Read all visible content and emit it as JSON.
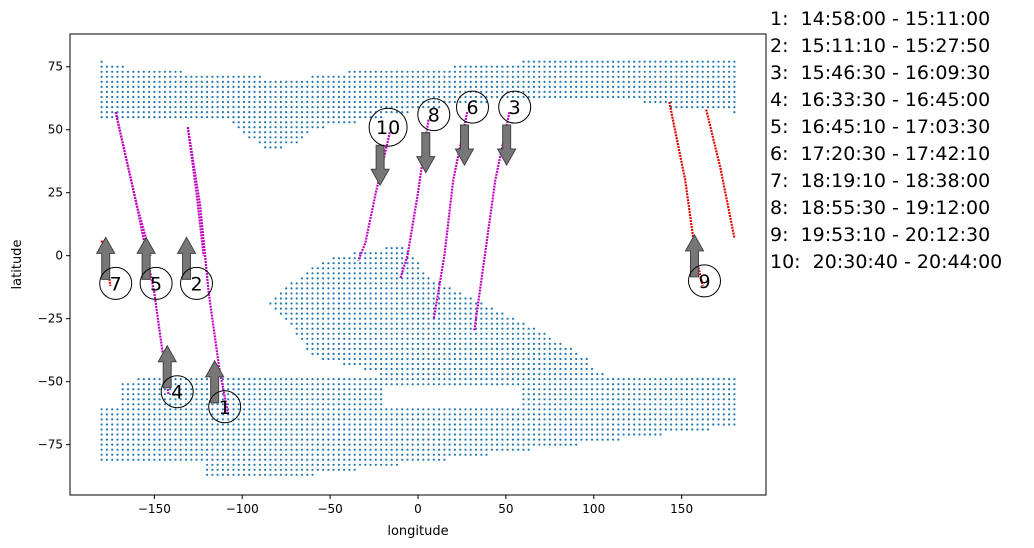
{
  "chart_data": {
    "type": "scatter",
    "title": "",
    "xlabel": "longitude",
    "ylabel": "latitude",
    "xlim": [
      -198,
      198
    ],
    "ylim": [
      -95,
      88
    ],
    "xticks": [
      -150,
      -100,
      -50,
      0,
      50,
      100,
      150
    ],
    "yticks": [
      -75,
      -50,
      -25,
      0,
      25,
      50,
      75
    ],
    "grid": false,
    "land_points_color": "#1f77b4",
    "land_regions": [
      {
        "name": "north-band",
        "lon_range": [
          -180,
          180
        ],
        "lat_range": [
          40,
          78
        ]
      },
      {
        "name": "south-continent",
        "lon_range": [
          -75,
          100
        ],
        "lat_range": [
          -70,
          5
        ]
      },
      {
        "name": "south-band",
        "lon_range": [
          -180,
          180
        ],
        "lat_range": [
          -87,
          -48
        ]
      }
    ],
    "track_colors": {
      "in_map": "#c000c0",
      "out_of_map": "#e00000"
    },
    "tracks": [
      {
        "id": 1,
        "time_range": "14:58:00 - 15:11:00",
        "label_pos": [
          -110,
          -60
        ],
        "arrow": "up",
        "color": "magenta",
        "path": [
          [
            -131,
            51
          ],
          [
            -124,
            20
          ],
          [
            -119,
            -15
          ],
          [
            -113,
            -45
          ],
          [
            -108,
            -63
          ]
        ]
      },
      {
        "id": 2,
        "time_range": "15:11:10 - 15:27:50",
        "label_pos": [
          -126,
          -11
        ],
        "arrow": "up",
        "color": "magenta",
        "path": [
          [
            -131,
            51
          ],
          [
            -126,
            25
          ],
          [
            -122,
            0
          ]
        ]
      },
      {
        "id": 3,
        "time_range": "15:46:30 - 16:09:30",
        "label_pos": [
          55,
          59
        ],
        "arrow": "down",
        "color": "magenta",
        "path": [
          [
            52,
            57
          ],
          [
            44,
            30
          ],
          [
            38,
            0
          ],
          [
            32,
            -30
          ]
        ]
      },
      {
        "id": 4,
        "time_range": "16:33:30 - 16:45:00",
        "label_pos": [
          -137,
          -54
        ],
        "arrow": "up",
        "color": "magenta",
        "path": [
          [
            -172,
            57
          ],
          [
            -160,
            20
          ],
          [
            -150,
            -15
          ],
          [
            -142,
            -55
          ]
        ]
      },
      {
        "id": 5,
        "time_range": "16:45:10 - 17:03:30",
        "label_pos": [
          -149,
          -11
        ],
        "arrow": "up",
        "color": "magenta",
        "path": [
          [
            -172,
            57
          ],
          [
            -160,
            20
          ],
          [
            -152,
            0
          ]
        ]
      },
      {
        "id": 6,
        "time_range": "17:20:30 - 17:42:10",
        "label_pos": [
          31,
          59
        ],
        "arrow": "down",
        "color": "magenta",
        "path": [
          [
            28,
            57
          ],
          [
            20,
            30
          ],
          [
            15,
            0
          ],
          [
            9,
            -25
          ]
        ]
      },
      {
        "id": 7,
        "time_range": "18:19:10 - 18:38:00",
        "label_pos": [
          -172,
          -11
        ],
        "arrow": "up",
        "color": "red",
        "path": [
          [
            -180,
            6
          ],
          [
            -177,
            -3
          ],
          [
            -175,
            -12
          ]
        ]
      },
      {
        "id": 8,
        "time_range": "18:55:30 - 19:12:00",
        "label_pos": [
          9,
          56
        ],
        "arrow": "down",
        "color": "magenta",
        "path": [
          [
            6,
            54
          ],
          [
            0,
            25
          ],
          [
            -6,
            0
          ],
          [
            -10,
            -9
          ]
        ]
      },
      {
        "id": 9,
        "time_range": "19:53:10 - 20:12:30",
        "label_pos": [
          163,
          -10
        ],
        "arrow": "up",
        "color": "red",
        "path": [
          [
            143,
            61
          ],
          [
            152,
            30
          ],
          [
            158,
            0
          ],
          [
            162,
            -12
          ]
        ],
        "extra_path": [
          [
            164,
            58
          ],
          [
            172,
            35
          ],
          [
            180,
            7
          ]
        ]
      },
      {
        "id": 10,
        "time_range": "20:30:40 - 20:44:00",
        "label_pos": [
          -17,
          51
        ],
        "arrow": "down",
        "color": "magenta",
        "path": [
          [
            -16,
            49
          ],
          [
            -24,
            25
          ],
          [
            -30,
            5
          ],
          [
            -34,
            -2
          ]
        ]
      }
    ]
  },
  "legend": [
    "1:  14:58:00 - 15:11:00",
    "2:  15:11:10 - 15:27:50",
    "3:  15:46:30 - 16:09:30",
    "4:  16:33:30 - 16:45:00",
    "5:  16:45:10 - 17:03:30",
    "6:  17:20:30 - 17:42:10",
    "7:  18:19:10 - 18:38:00",
    "8:  18:55:30 - 19:12:00",
    "9:  19:53:10 - 20:12:30",
    "10:  20:30:40 - 20:44:00"
  ]
}
